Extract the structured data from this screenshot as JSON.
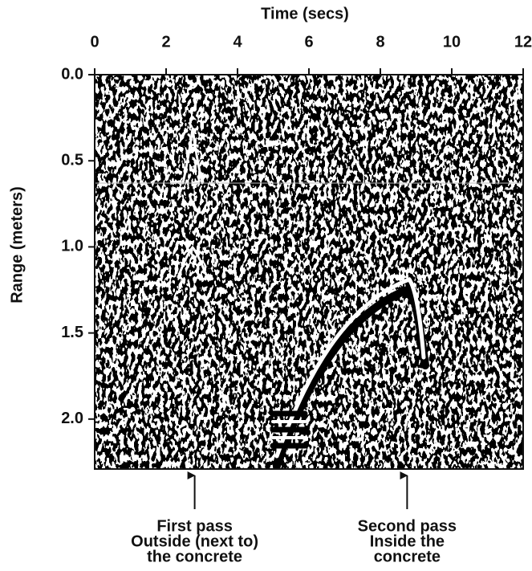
{
  "chart_data": {
    "type": "radargram",
    "title": "Time (secs)",
    "y_label": "Range (meters)",
    "xlim": [
      0,
      12
    ],
    "xticks": [
      0,
      2,
      4,
      6,
      8,
      10,
      12
    ],
    "ylim": [
      0,
      2.29
    ],
    "yticks": [
      {
        "value": 0,
        "label": "0.0"
      },
      {
        "value": 0.5,
        "label": "0.5"
      },
      {
        "value": 1,
        "label": "1.0"
      },
      {
        "value": 1.5,
        "label": "1.5"
      },
      {
        "value": 2,
        "label": "2.0"
      }
    ],
    "annotations": [
      {
        "x": 2.8,
        "lines": [
          "First pass",
          "Outside (next to)",
          "the concrete"
        ]
      },
      {
        "x": 8.75,
        "lines": [
          "Second pass",
          "Inside the",
          "concrete"
        ]
      }
    ]
  }
}
